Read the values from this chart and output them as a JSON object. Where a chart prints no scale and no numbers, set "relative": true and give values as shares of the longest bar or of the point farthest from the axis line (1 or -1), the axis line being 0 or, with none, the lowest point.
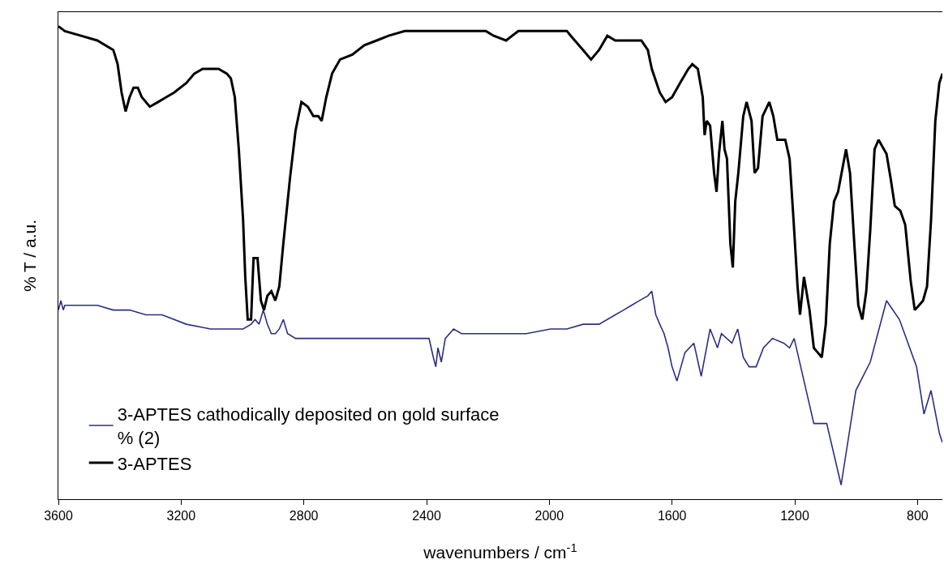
{
  "chart_data": {
    "type": "line",
    "relative": true,
    "xlabel": "wavenumbers / cm$^{-1}$",
    "ylabel": "% T / a.u.",
    "xlim": [
      3600,
      719
    ],
    "xticks": [
      3600,
      3200,
      2800,
      2400,
      2000,
      1600,
      1200,
      800
    ],
    "legend": "bottom left",
    "marker": "none",
    "line_style": "solid",
    "series": [
      {
        "name": "3-APTES cathodically deposited on gold surface % (2)",
        "color": "#2b2f7f",
        "x": [
          3600,
          3592,
          3584,
          3579,
          3566,
          3553,
          3526,
          3473,
          3421,
          3368,
          3315,
          3262,
          3183,
          3104,
          3051,
          2998,
          2972,
          2959,
          2946,
          2932,
          2919,
          2906,
          2893,
          2880,
          2867,
          2853,
          2827,
          2735,
          2603,
          2524,
          2471,
          2418,
          2392,
          2378,
          2370,
          2363,
          2352,
          2339,
          2312,
          2286,
          2233,
          2154,
          2075,
          1996,
          1943,
          1890,
          1838,
          1785,
          1758,
          1732,
          1706,
          1679,
          1666,
          1653,
          1640,
          1626,
          1613,
          1600,
          1584,
          1558,
          1529,
          1505,
          1476,
          1452,
          1439,
          1405,
          1386,
          1368,
          1349,
          1326,
          1302,
          1273,
          1236,
          1217,
          1202,
          1170,
          1138,
          1096,
          1049,
          1001,
          954,
          901,
          859,
          803,
          779,
          756,
          729,
          719
        ],
        "values": [
          0.4,
          0.42,
          0.4,
          0.41,
          0.41,
          0.41,
          0.41,
          0.41,
          0.4,
          0.4,
          0.39,
          0.39,
          0.37,
          0.36,
          0.36,
          0.36,
          0.37,
          0.38,
          0.37,
          0.4,
          0.37,
          0.35,
          0.35,
          0.36,
          0.38,
          0.35,
          0.34,
          0.34,
          0.34,
          0.34,
          0.34,
          0.34,
          0.34,
          0.3,
          0.28,
          0.32,
          0.29,
          0.34,
          0.36,
          0.35,
          0.35,
          0.35,
          0.35,
          0.36,
          0.36,
          0.37,
          0.37,
          0.39,
          0.4,
          0.41,
          0.42,
          0.43,
          0.44,
          0.39,
          0.37,
          0.35,
          0.32,
          0.28,
          0.25,
          0.31,
          0.33,
          0.26,
          0.36,
          0.32,
          0.35,
          0.33,
          0.36,
          0.3,
          0.28,
          0.28,
          0.32,
          0.34,
          0.33,
          0.32,
          0.34,
          0.25,
          0.16,
          0.16,
          0.03,
          0.23,
          0.29,
          0.42,
          0.38,
          0.28,
          0.18,
          0.23,
          0.14,
          0.12
        ]
      },
      {
        "name": "3-APTES",
        "color": "#000000",
        "x": [
          3600,
          3579,
          3526,
          3473,
          3421,
          3407,
          3394,
          3381,
          3368,
          3355,
          3341,
          3328,
          3302,
          3275,
          3249,
          3223,
          3183,
          3157,
          3130,
          3078,
          3051,
          3038,
          3025,
          3012,
          2998,
          2991,
          2983,
          2972,
          2964,
          2951,
          2940,
          2930,
          2919,
          2906,
          2893,
          2880,
          2867,
          2845,
          2827,
          2808,
          2787,
          2769,
          2753,
          2742,
          2727,
          2708,
          2682,
          2642,
          2603,
          2563,
          2524,
          2471,
          2418,
          2339,
          2260,
          2207,
          2181,
          2141,
          2101,
          2049,
          2009,
          1943,
          1930,
          1890,
          1864,
          1838,
          1811,
          1785,
          1732,
          1700,
          1679,
          1666,
          1640,
          1621,
          1600,
          1574,
          1547,
          1534,
          1516,
          1500,
          1494,
          1487,
          1476,
          1463,
          1455,
          1447,
          1436,
          1429,
          1421,
          1410,
          1402,
          1394,
          1384,
          1368,
          1357,
          1341,
          1331,
          1320,
          1305,
          1283,
          1270,
          1257,
          1244,
          1231,
          1217,
          1204,
          1191,
          1183,
          1170,
          1152,
          1138,
          1125,
          1112,
          1099,
          1086,
          1072,
          1059,
          1033,
          1020,
          1006,
          993,
          980,
          967,
          954,
          940,
          927,
          901,
          888,
          874,
          856,
          840,
          822,
          809,
          795,
          782,
          769,
          756,
          742,
          729,
          719
        ],
        "values": [
          1.0,
          0.99,
          0.98,
          0.97,
          0.95,
          0.92,
          0.86,
          0.82,
          0.85,
          0.87,
          0.87,
          0.85,
          0.83,
          0.84,
          0.85,
          0.86,
          0.88,
          0.9,
          0.91,
          0.91,
          0.9,
          0.89,
          0.85,
          0.74,
          0.59,
          0.47,
          0.38,
          0.38,
          0.51,
          0.51,
          0.42,
          0.4,
          0.43,
          0.44,
          0.42,
          0.45,
          0.54,
          0.68,
          0.78,
          0.84,
          0.83,
          0.81,
          0.81,
          0.8,
          0.85,
          0.9,
          0.93,
          0.94,
          0.96,
          0.97,
          0.98,
          0.99,
          0.99,
          0.99,
          0.99,
          0.99,
          0.98,
          0.97,
          0.99,
          0.99,
          0.99,
          0.99,
          0.98,
          0.95,
          0.93,
          0.95,
          0.98,
          0.97,
          0.97,
          0.97,
          0.95,
          0.91,
          0.86,
          0.84,
          0.85,
          0.88,
          0.91,
          0.92,
          0.91,
          0.85,
          0.77,
          0.8,
          0.79,
          0.69,
          0.65,
          0.73,
          0.8,
          0.74,
          0.72,
          0.54,
          0.49,
          0.63,
          0.69,
          0.81,
          0.84,
          0.8,
          0.69,
          0.7,
          0.81,
          0.84,
          0.81,
          0.76,
          0.76,
          0.76,
          0.72,
          0.59,
          0.45,
          0.39,
          0.47,
          0.4,
          0.32,
          0.31,
          0.3,
          0.37,
          0.54,
          0.63,
          0.65,
          0.74,
          0.69,
          0.54,
          0.41,
          0.38,
          0.44,
          0.57,
          0.74,
          0.76,
          0.73,
          0.68,
          0.62,
          0.61,
          0.58,
          0.46,
          0.4,
          0.41,
          0.42,
          0.45,
          0.59,
          0.8,
          0.88,
          0.9
        ]
      }
    ]
  }
}
